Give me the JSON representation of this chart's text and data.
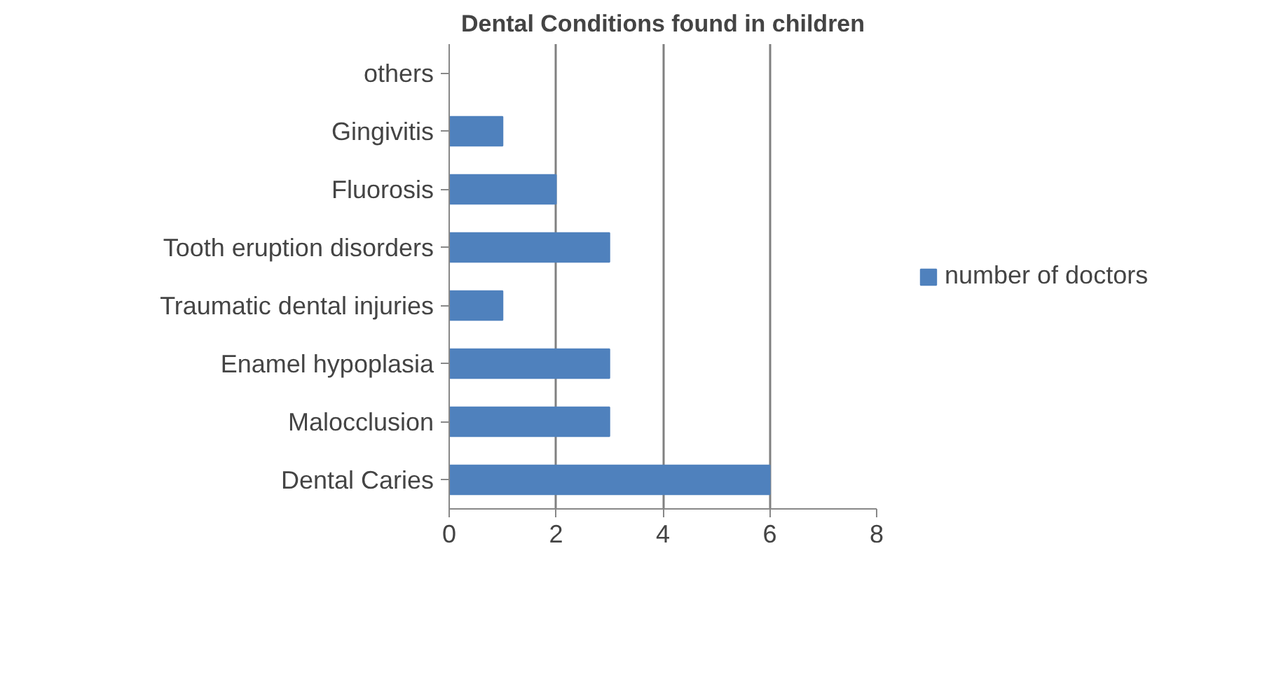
{
  "chart_data": {
    "type": "bar",
    "orientation": "horizontal",
    "title": "Dental Conditions found in children",
    "categories": [
      "others",
      "Gingivitis",
      "Fluorosis",
      "Tooth eruption disorders",
      "Traumatic dental injuries",
      "Enamel hypoplasia",
      "Malocclusion",
      "Dental Caries"
    ],
    "series": [
      {
        "name": "number of doctors",
        "color": "#4f81bd",
        "values": [
          0,
          1,
          2,
          3,
          1,
          3,
          3,
          6
        ]
      }
    ],
    "xlim": [
      0,
      8
    ],
    "xticks": [
      0,
      2,
      4,
      6,
      8
    ],
    "grid": "x",
    "legend": "right"
  }
}
